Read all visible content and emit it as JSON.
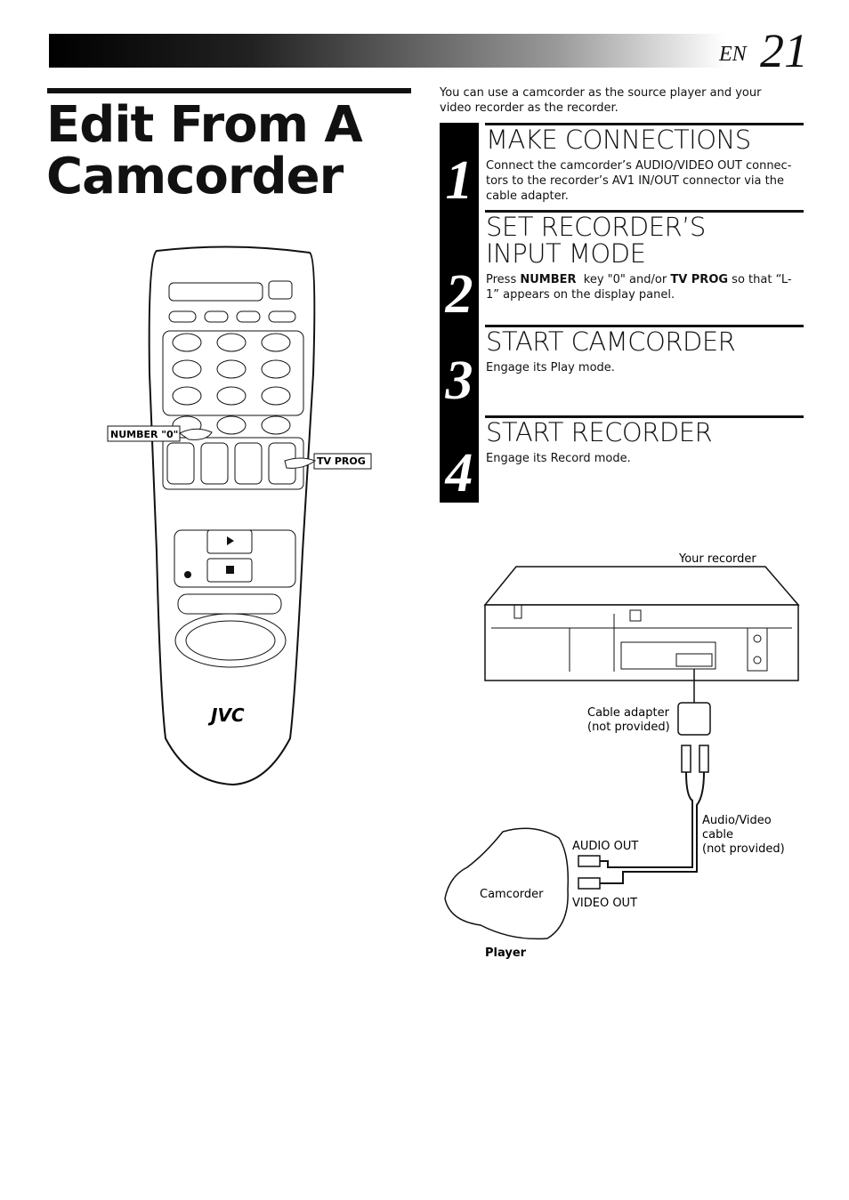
{
  "header": {
    "lang": "EN",
    "page": "21"
  },
  "title_lines": [
    "Edit From A",
    "Camcorder"
  ],
  "intro": "You can use a camcorder as the source player and your video recorder as the recorder.",
  "steps": [
    {
      "number": "1",
      "heading": "MAKE CONNECTIONS",
      "body": [
        {
          "text": "Connect the camcorder’s AUDIO/VIDEO OUT connec-tors to the recorder’s AV1 IN/OUT connector via the cable adapter.",
          "bold": false
        }
      ]
    },
    {
      "number": "2",
      "heading": "SET RECORDER’S INPUT MODE",
      "body": [
        {
          "text": "Press ",
          "bold": false
        },
        {
          "text": "NUMBER",
          "bold": true
        },
        {
          "text": "  key \"0\" and/or ",
          "bold": false
        },
        {
          "text": "TV PROG",
          "bold": true
        },
        {
          "text": " so that “L-1” appears on the display panel.",
          "bold": false
        }
      ]
    },
    {
      "number": "3",
      "heading": "START CAMCORDER",
      "body": [
        {
          "text": "Engage its Play mode.",
          "bold": false
        }
      ]
    },
    {
      "number": "4",
      "heading": "START RECORDER",
      "body": [
        {
          "text": "Engage its Record mode.",
          "bold": false
        }
      ]
    }
  ],
  "remote": {
    "number_label": "NUMBER \"0\"",
    "tvprog_label": "TV PROG",
    "brand": "JVC"
  },
  "diagram": {
    "recorder": "Your recorder",
    "adapter": [
      "Cable adapter",
      "(not provided)"
    ],
    "cable": [
      "Audio/Video",
      "cable",
      "(not provided)"
    ],
    "audio_out": "AUDIO OUT",
    "video_out": "VIDEO OUT",
    "camcorder": "Camcorder",
    "player": "Player"
  }
}
